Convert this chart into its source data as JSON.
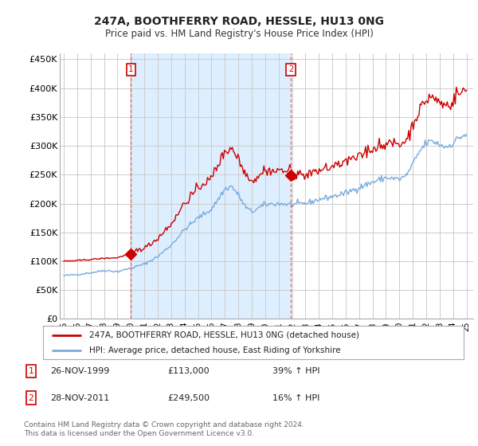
{
  "title": "247A, BOOTHFERRY ROAD, HESSLE, HU13 0NG",
  "subtitle": "Price paid vs. HM Land Registry's House Price Index (HPI)",
  "ylabel_ticks": [
    "£0",
    "£50K",
    "£100K",
    "£150K",
    "£200K",
    "£250K",
    "£300K",
    "£350K",
    "£400K",
    "£450K"
  ],
  "ytick_values": [
    0,
    50000,
    100000,
    150000,
    200000,
    250000,
    300000,
    350000,
    400000,
    450000
  ],
  "ylim": [
    0,
    460000
  ],
  "xlim_start": 1994.7,
  "xlim_end": 2025.5,
  "price_paid_color": "#cc0000",
  "hpi_color": "#7aaadd",
  "shade_color": "#ddeeff",
  "vline_color": "#dd4444",
  "sale1_x": 2000.0,
  "sale1_y": 113000,
  "sale1_label": "1",
  "sale1_date": "26-NOV-1999",
  "sale1_price": "£113,000",
  "sale1_pct": "39% ↑ HPI",
  "sale2_x": 2011.92,
  "sale2_y": 249500,
  "sale2_label": "2",
  "sale2_date": "28-NOV-2011",
  "sale2_price": "£249,500",
  "sale2_pct": "16% ↑ HPI",
  "legend_line1": "247A, BOOTHFERRY ROAD, HESSLE, HU13 0NG (detached house)",
  "legend_line2": "HPI: Average price, detached house, East Riding of Yorkshire",
  "footnote": "Contains HM Land Registry data © Crown copyright and database right 2024.\nThis data is licensed under the Open Government Licence v3.0.",
  "background_color": "#ffffff",
  "grid_color": "#cccccc",
  "xtick_labels": [
    "95",
    "96",
    "97",
    "98",
    "99",
    "00",
    "01",
    "02",
    "03",
    "04",
    "05",
    "06",
    "07",
    "08",
    "09",
    "10",
    "11",
    "12",
    "13",
    "14",
    "15",
    "16",
    "17",
    "18",
    "19",
    "20",
    "21",
    "22",
    "23",
    "24",
    "25"
  ],
  "xtick_years": [
    1995,
    1996,
    1997,
    1998,
    1999,
    2000,
    2001,
    2002,
    2003,
    2004,
    2005,
    2006,
    2007,
    2008,
    2009,
    2010,
    2011,
    2012,
    2013,
    2014,
    2015,
    2016,
    2017,
    2018,
    2019,
    2020,
    2021,
    2022,
    2023,
    2024,
    2025
  ]
}
